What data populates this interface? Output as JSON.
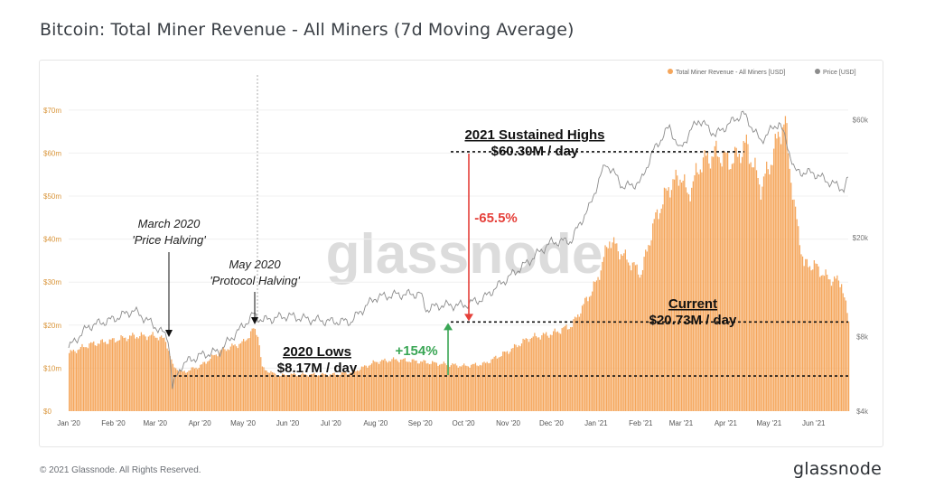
{
  "title": "Bitcoin: Total Miner Revenue - All Miners (7d Moving Average)",
  "footer": {
    "copyright": "© 2021 Glassnode. All Rights Reserved.",
    "brand": "glassnode"
  },
  "watermark": "glassnode",
  "colors": {
    "bars": "#f5a65b",
    "price": "#8c8c8c",
    "up": "#3aa655",
    "down": "#e5403a",
    "axis_left": "#d9953a",
    "axis_right": "#777777"
  },
  "chart_data": {
    "type": "bar",
    "title": "Bitcoin: Total Miner Revenue - All Miners (7d Moving Average)",
    "legend": {
      "placement": "top-right",
      "entries": [
        "Total Miner Revenue - All Miners [USD]",
        "Price [USD]"
      ]
    },
    "x_ticks": [
      "Jan '20",
      "Feb '20",
      "Mar '20",
      "Apr '20",
      "May '20",
      "Jun '20",
      "Jul '20",
      "Aug '20",
      "Sep '20",
      "Oct '20",
      "Nov '20",
      "Dec '20",
      "Jan '21",
      "Feb '21",
      "Mar '21",
      "Apr '21",
      "May '21",
      "Jun '21"
    ],
    "x_range": [
      "2020-01-01",
      "2021-06-25"
    ],
    "y_left": {
      "label": "Total Miner Revenue [USD]",
      "range": [
        0,
        75000000
      ],
      "ticks": [
        "$0",
        "$10m",
        "$20m",
        "$30m",
        "$40m",
        "$50m",
        "$60m",
        "$70m"
      ],
      "tick_values": [
        0,
        10000000,
        20000000,
        30000000,
        40000000,
        50000000,
        60000000,
        70000000
      ]
    },
    "y_right": {
      "scale": "log",
      "range": [
        4000,
        80000
      ],
      "ticks": [
        "$4k",
        "$8k",
        "$20k",
        "$60k"
      ],
      "tick_values": [
        4000,
        8000,
        20000,
        60000
      ]
    },
    "series": [
      {
        "name": "Total Miner Revenue - All Miners [USD]",
        "kind": "bar",
        "points": [
          [
            "2020-01-01",
            13.5
          ],
          [
            "2020-01-15",
            15.5
          ],
          [
            "2020-02-01",
            16.5
          ],
          [
            "2020-02-15",
            17.5
          ],
          [
            "2020-03-01",
            17.5
          ],
          [
            "2020-03-08",
            16.5
          ],
          [
            "2020-03-13",
            10.5
          ],
          [
            "2020-03-20",
            9
          ],
          [
            "2020-04-01",
            10.5
          ],
          [
            "2020-04-15",
            14
          ],
          [
            "2020-05-01",
            16
          ],
          [
            "2020-05-08",
            19
          ],
          [
            "2020-05-11",
            18
          ],
          [
            "2020-05-14",
            10
          ],
          [
            "2020-05-25",
            8.2
          ],
          [
            "2020-06-01",
            8.5
          ],
          [
            "2020-06-15",
            8.5
          ],
          [
            "2020-07-01",
            8.5
          ],
          [
            "2020-07-15",
            9
          ],
          [
            "2020-08-01",
            11.5
          ],
          [
            "2020-08-15",
            12
          ],
          [
            "2020-09-01",
            11.5
          ],
          [
            "2020-09-15",
            11
          ],
          [
            "2020-10-01",
            10.5
          ],
          [
            "2020-10-15",
            11
          ],
          [
            "2020-11-01",
            14
          ],
          [
            "2020-11-15",
            17
          ],
          [
            "2020-12-01",
            18
          ],
          [
            "2020-12-15",
            20
          ],
          [
            "2021-01-01",
            30
          ],
          [
            "2021-01-10",
            40
          ],
          [
            "2021-01-20",
            36
          ],
          [
            "2021-02-01",
            32
          ],
          [
            "2021-02-10",
            44
          ],
          [
            "2021-02-20",
            52
          ],
          [
            "2021-03-01",
            55
          ],
          [
            "2021-03-05",
            50
          ],
          [
            "2021-03-15",
            58
          ],
          [
            "2021-03-25",
            60
          ],
          [
            "2021-04-05",
            58
          ],
          [
            "2021-04-15",
            62
          ],
          [
            "2021-04-25",
            52
          ],
          [
            "2021-05-01",
            57
          ],
          [
            "2021-05-08",
            65
          ],
          [
            "2021-05-12",
            67
          ],
          [
            "2021-05-18",
            48
          ],
          [
            "2021-05-25",
            34
          ],
          [
            "2021-06-01",
            34
          ],
          [
            "2021-06-10",
            31
          ],
          [
            "2021-06-20",
            30
          ],
          [
            "2021-06-25",
            20.73
          ]
        ]
      },
      {
        "name": "Price [USD]",
        "kind": "line",
        "points": [
          [
            "2020-01-01",
            7200
          ],
          [
            "2020-01-15",
            8800
          ],
          [
            "2020-02-01",
            9400
          ],
          [
            "2020-02-15",
            10200
          ],
          [
            "2020-03-01",
            8800
          ],
          [
            "2020-03-10",
            7900
          ],
          [
            "2020-03-13",
            5000
          ],
          [
            "2020-03-20",
            6200
          ],
          [
            "2020-04-01",
            6700
          ],
          [
            "2020-04-15",
            7000
          ],
          [
            "2020-05-01",
            8800
          ],
          [
            "2020-05-08",
            9800
          ],
          [
            "2020-05-15",
            9300
          ],
          [
            "2020-06-01",
            9700
          ],
          [
            "2020-06-15",
            9400
          ],
          [
            "2020-07-01",
            9200
          ],
          [
            "2020-07-15",
            9200
          ],
          [
            "2020-08-01",
            11500
          ],
          [
            "2020-08-15",
            11800
          ],
          [
            "2020-09-01",
            11900
          ],
          [
            "2020-09-05",
            10300
          ],
          [
            "2020-09-15",
            10700
          ],
          [
            "2020-10-01",
            10700
          ],
          [
            "2020-10-15",
            11400
          ],
          [
            "2020-11-01",
            13800
          ],
          [
            "2020-11-15",
            16000
          ],
          [
            "2020-12-01",
            19200
          ],
          [
            "2020-12-15",
            19500
          ],
          [
            "2020-12-28",
            27000
          ],
          [
            "2021-01-08",
            40000
          ],
          [
            "2021-01-20",
            32000
          ],
          [
            "2021-02-01",
            33500
          ],
          [
            "2021-02-10",
            45000
          ],
          [
            "2021-02-21",
            56000
          ],
          [
            "2021-02-28",
            45000
          ],
          [
            "2021-03-13",
            60000
          ],
          [
            "2021-03-25",
            52000
          ],
          [
            "2021-04-13",
            63500
          ],
          [
            "2021-04-25",
            49000
          ],
          [
            "2021-05-08",
            58500
          ],
          [
            "2021-05-19",
            37000
          ],
          [
            "2021-06-01",
            36500
          ],
          [
            "2021-06-10",
            34000
          ],
          [
            "2021-06-22",
            31500
          ],
          [
            "2021-06-25",
            34500
          ]
        ]
      }
    ],
    "annotations": {
      "march_label": [
        "March 2020",
        "'Price Halving'"
      ],
      "may_label": [
        "May 2020",
        "'Protocol Halving'"
      ],
      "highs_title": "2021 Sustained Highs",
      "highs_value": "$60.30M / day",
      "current_title": "Current",
      "current_value": "$20.73M / day",
      "lows_title": "2020 Lows",
      "lows_value": "$8.17M / day",
      "pct_up": "+154%",
      "pct_down": "-65.5%",
      "levels": {
        "highs": 60.3,
        "current": 20.73,
        "lows": 8.17
      }
    }
  }
}
